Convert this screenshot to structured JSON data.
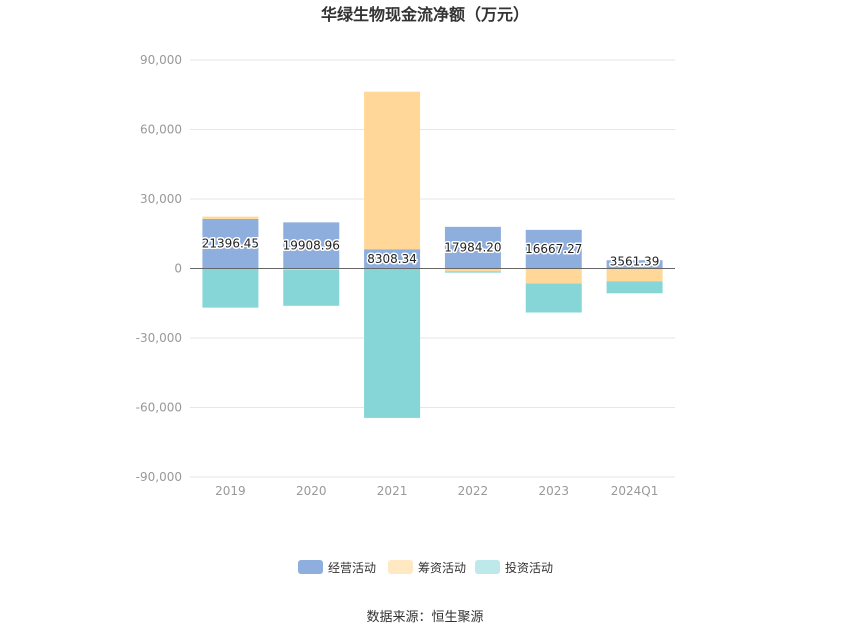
{
  "chart_data": {
    "type": "bar",
    "stacked": true,
    "title": "华绿生物现金流净额（万元）",
    "categories": [
      "2019",
      "2020",
      "2021",
      "2022",
      "2023",
      "2024Q1"
    ],
    "series": [
      {
        "name": "经营活动",
        "color": "#8eaedd",
        "values": [
          21396.45,
          19908.96,
          8308.34,
          17984.2,
          16667.27,
          3561.39
        ]
      },
      {
        "name": "筹资活动",
        "color": "#ffd899",
        "values": [
          1000,
          -500,
          68000,
          -1200,
          -6500,
          -5500
        ]
      },
      {
        "name": "投资活动",
        "color": "#86d6d8",
        "values": [
          -16900,
          -15600,
          -64500,
          -600,
          -12500,
          -5200
        ]
      }
    ],
    "data_labels": [
      "21396.45",
      "19908.96",
      "8308.34",
      "17984.20",
      "16667.27",
      "3561.39"
    ],
    "ylim": [
      -90000,
      90000
    ],
    "yticks": [
      90000,
      60000,
      30000,
      0,
      -30000,
      -60000,
      -90000
    ],
    "ytick_labels": [
      "90,000",
      "60,000",
      "30,000",
      "0",
      "-30,000",
      "-60,000",
      "-90,000"
    ],
    "grid": true,
    "legend_position": "bottom",
    "legend_colors": [
      "#8eaedd",
      "#ffe9c2",
      "#bde9eb"
    ],
    "source": "数据来源：恒生聚源"
  }
}
